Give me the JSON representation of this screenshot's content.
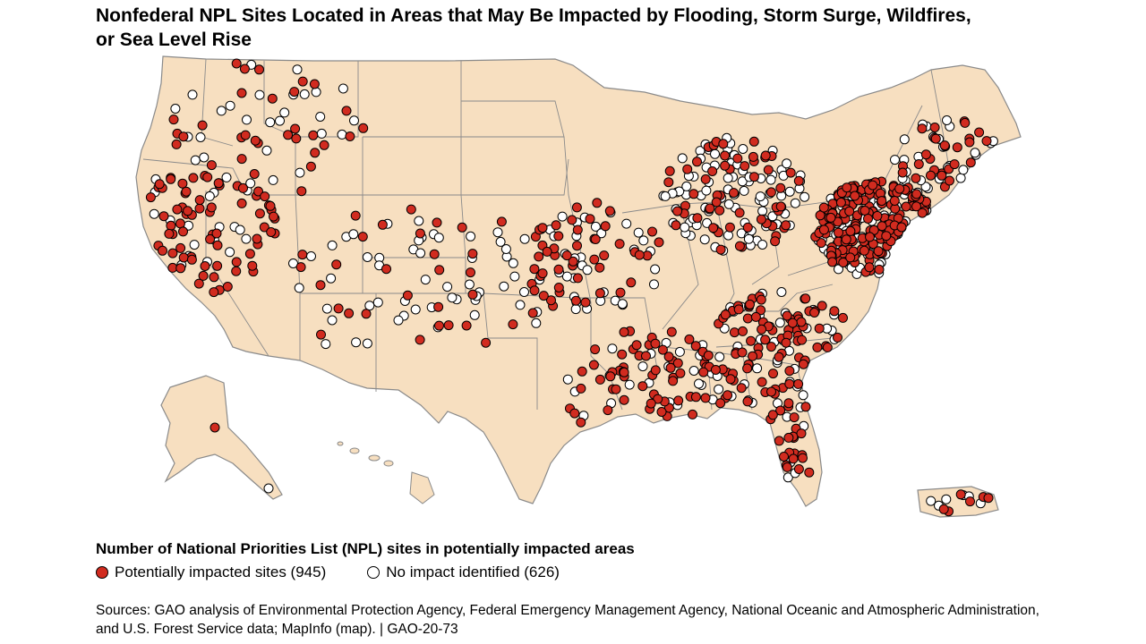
{
  "title": "Nonfederal NPL Sites Located in Areas that May Be Impacted by Flooding, Storm Surge, Wildfires, or Sea Level Rise",
  "legend": {
    "heading": "Number of National Priorities List (NPL) sites in potentially impacted areas",
    "impacted_label": "Potentially impacted sites (945)",
    "not_impacted_label": "No impact identified (626)"
  },
  "sources": "Sources: GAO analysis of Environmental Protection Agency, Federal Emergency Management Agency, National Oceanic and Atmospheric Administration, and U.S. Forest Service data; MapInfo (map).  |  GAO-20-73",
  "colors": {
    "land": "#f7dfc0",
    "border": "#8a8a8a",
    "impacted": "#d12b1f",
    "not_impacted": "#ffffff",
    "outline": "#000000"
  },
  "map": {
    "icon": "us-map-icon",
    "symbols": {
      "impacted": "filled-red-circle-icon",
      "not_impacted": "hollow-circle-icon"
    }
  }
}
